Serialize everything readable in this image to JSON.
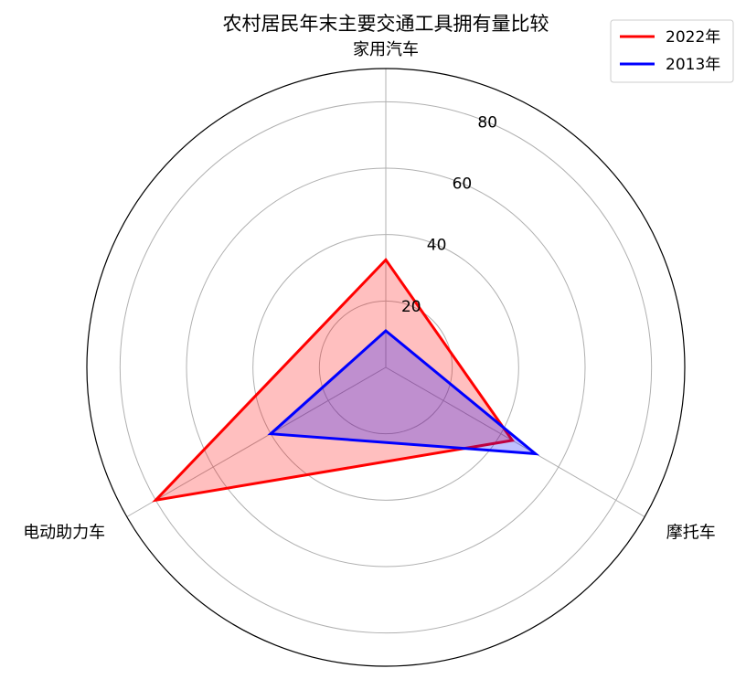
{
  "chart_data": {
    "type": "radar",
    "title": "农村居民年末主要交通工具拥有量比较",
    "categories": [
      "家用汽车",
      "摩托车",
      "电动助力车"
    ],
    "series": [
      {
        "name": "2022年",
        "values": [
          32.4,
          44.0,
          80.0
        ],
        "color": "#ff0000",
        "fill": "#ff0000",
        "fill_opacity": 0.25
      },
      {
        "name": "2013年",
        "values": [
          11.0,
          52.0,
          40.0
        ],
        "color": "#0000ff",
        "fill": "#0000ff",
        "fill_opacity": 0.25
      }
    ],
    "radial_ticks": [
      20,
      40,
      60,
      80
    ],
    "rlim": [
      0,
      90
    ],
    "grid": true,
    "legend": "top-right"
  }
}
